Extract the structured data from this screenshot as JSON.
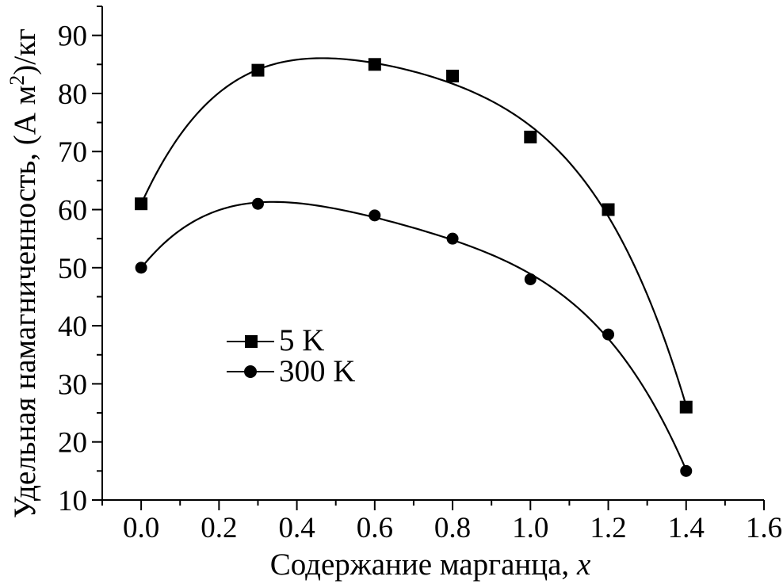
{
  "chart_data": {
    "type": "scatter",
    "title": "",
    "xlabel_prefix": "Содержание марганца, ",
    "xlabel_var": "x",
    "ylabel_main": "Удельная намагниченность, (А м",
    "ylabel_sup": "2",
    "ylabel_end": ")/кг",
    "xlim": [
      -0.1,
      1.6
    ],
    "ylim": [
      10,
      95
    ],
    "x_ticks": [
      "0.0",
      "0.2",
      "0.4",
      "0.6",
      "0.8",
      "1.0",
      "1.2",
      "1.4",
      "1.6"
    ],
    "y_ticks": [
      "10",
      "20",
      "30",
      "40",
      "50",
      "60",
      "70",
      "80",
      "90"
    ],
    "legend_position": "middle-left",
    "series": [
      {
        "name": "5 K",
        "marker": "square",
        "x": [
          0.0,
          0.3,
          0.6,
          0.8,
          1.0,
          1.2,
          1.4
        ],
        "values": [
          61,
          84,
          85,
          83,
          72.5,
          60,
          26
        ]
      },
      {
        "name": "300 K",
        "marker": "circle",
        "x": [
          0.0,
          0.3,
          0.6,
          0.8,
          1.0,
          1.2,
          1.4
        ],
        "values": [
          50,
          61,
          59,
          55,
          48,
          38.5,
          15
        ]
      }
    ]
  }
}
